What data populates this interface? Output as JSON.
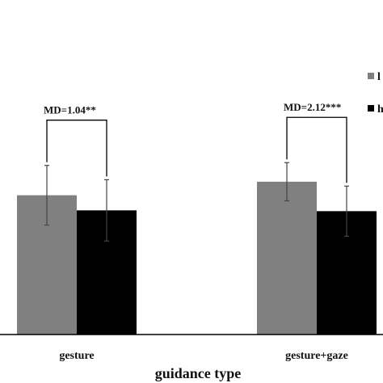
{
  "chart_data": {
    "type": "bar",
    "title": "",
    "xlabel": "guidance type",
    "ylabel": "",
    "categories": [
      "gesture",
      "gesture+gaze"
    ],
    "series": [
      {
        "name": "l",
        "color": "#808080",
        "values": [
          3.5,
          3.84
        ],
        "error": [
          0.75,
          0.48
        ]
      },
      {
        "name": "h",
        "color": "#000000",
        "values": [
          3.12,
          3.1
        ],
        "error": [
          0.77,
          0.63
        ]
      }
    ],
    "ylim": [
      0,
      8
    ],
    "annotations": [
      {
        "category": "gesture",
        "text": "MD=1.04**"
      },
      {
        "category": "gesture+gaze",
        "text": "MD=2.12***"
      }
    ],
    "legend_position": "top-right",
    "grid": false
  }
}
